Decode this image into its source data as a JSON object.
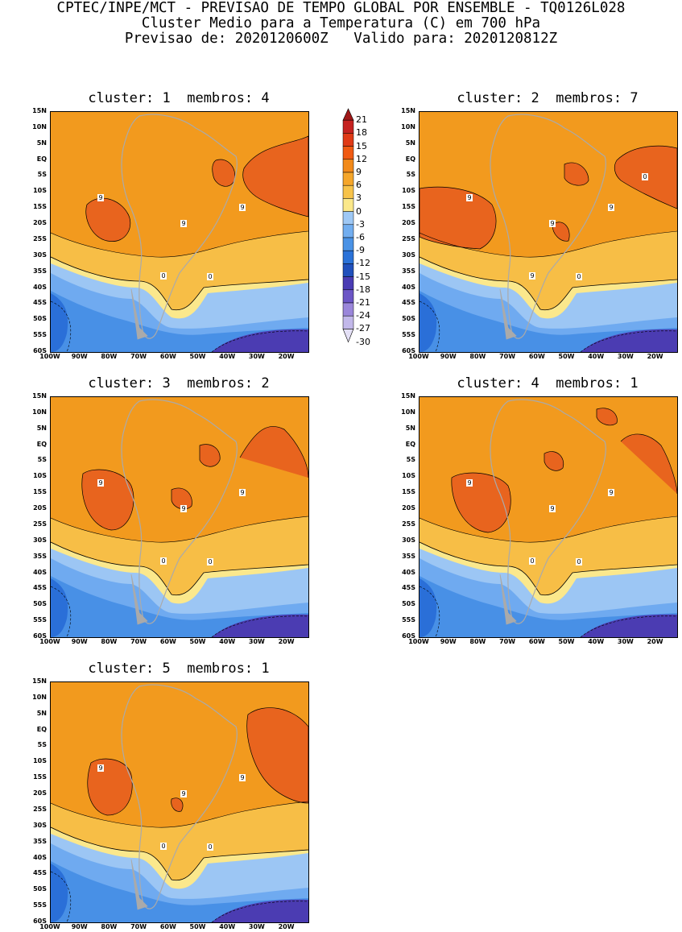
{
  "header": {
    "line1": "CPTEC/INPE/MCT - PREVISAO DE TEMPO GLOBAL POR ENSEMBLE - TQ0126L028",
    "line2": "Cluster Medio para a Temperatura (C) em 700 hPa",
    "line3": "Previsao de: 2020120600Z   Valido para: 2020120812Z"
  },
  "panels": [
    {
      "title": "cluster: 1  membros: 4",
      "labels": [
        "9",
        "9",
        "9",
        "0",
        "0"
      ]
    },
    {
      "title": "cluster: 2  membros: 7",
      "labels": [
        "9",
        "9",
        "9",
        "9",
        "0",
        "0"
      ]
    },
    {
      "title": "cluster: 3  membros: 2",
      "labels": [
        "9",
        "9",
        "9",
        "0",
        "0"
      ]
    },
    {
      "title": "cluster: 4  membros: 1",
      "labels": [
        "9",
        "9",
        "9",
        "0",
        "0"
      ]
    },
    {
      "title": "cluster: 5  membros: 1",
      "labels": [
        "9",
        "9",
        "9",
        "0",
        "0"
      ]
    }
  ],
  "lat_labels": [
    "15N",
    "10N",
    "5N",
    "EQ",
    "5S",
    "10S",
    "15S",
    "20S",
    "25S",
    "30S",
    "35S",
    "40S",
    "45S",
    "50S",
    "55S",
    "60S"
  ],
  "lon_labels": [
    "100W",
    "90W",
    "80W",
    "70W",
    "60W",
    "50W",
    "40W",
    "30W",
    "20W"
  ],
  "colorbar": {
    "labels": [
      "21",
      "18",
      "15",
      "12",
      "9",
      "6",
      "3",
      "0",
      "-3",
      "-6",
      "-9",
      "-12",
      "-15",
      "-18",
      "-21",
      "-24",
      "-27",
      "-30"
    ],
    "colors": [
      "#a01818",
      "#c52220",
      "#e03a16",
      "#f05a12",
      "#f28a1a",
      "#f5a62a",
      "#f7c34a",
      "#fbe88a",
      "#9ec8f5",
      "#72aef0",
      "#4a92e6",
      "#2a72d8",
      "#2050bc",
      "#4a3cb4",
      "#6c56c6",
      "#9a86da",
      "#c2b8ea",
      "#e4e0f6"
    ]
  },
  "field_colors": {
    "c9": "#e8641e",
    "c6": "#f29a1e",
    "c3": "#f7be46",
    "c0": "#fbe88c",
    "cm3": "#9cc6f4",
    "cm6": "#6faaf0",
    "cm9": "#4890e6",
    "cm12": "#2a6fd8",
    "cm15": "#4b3cb2",
    "land": "#aaaaaa"
  }
}
